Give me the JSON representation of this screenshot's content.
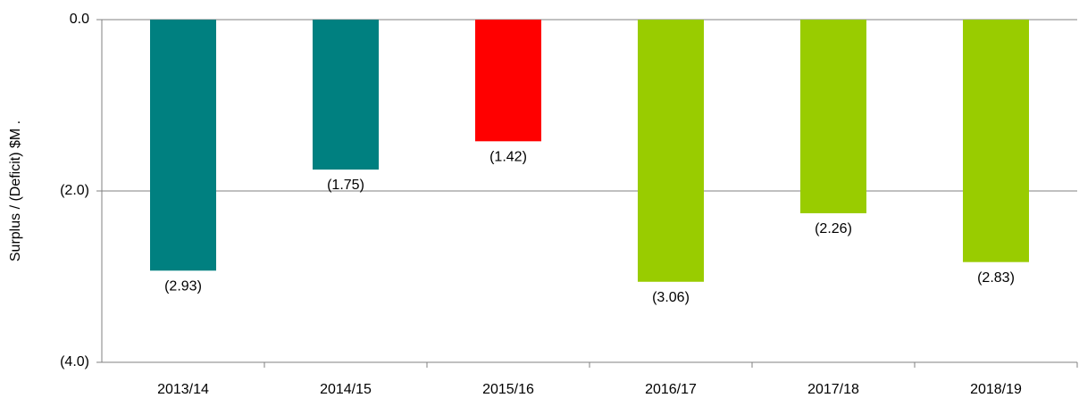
{
  "chart_data": {
    "type": "bar",
    "y_label": "Surplus / (Deficit) $M  .",
    "categories": [
      "2013/14",
      "2014/15",
      "2015/16",
      "2016/17",
      "2017/18",
      "2018/19"
    ],
    "values": [
      -2.93,
      -1.75,
      -1.42,
      -3.06,
      -2.26,
      -2.83
    ],
    "value_labels": [
      "(2.93)",
      "(1.75)",
      "(1.42)",
      "(3.06)",
      "(2.26)",
      "(2.83)"
    ],
    "colors": [
      "#008080",
      "#008080",
      "#ff0000",
      "#99cc00",
      "#99cc00",
      "#99cc00"
    ],
    "ylim": [
      -4,
      0
    ],
    "yticks": [
      {
        "value": 0,
        "label": "0.0"
      },
      {
        "value": -2,
        "label": "(2.0)"
      },
      {
        "value": -4,
        "label": "(4.0)"
      }
    ],
    "grid": true
  }
}
